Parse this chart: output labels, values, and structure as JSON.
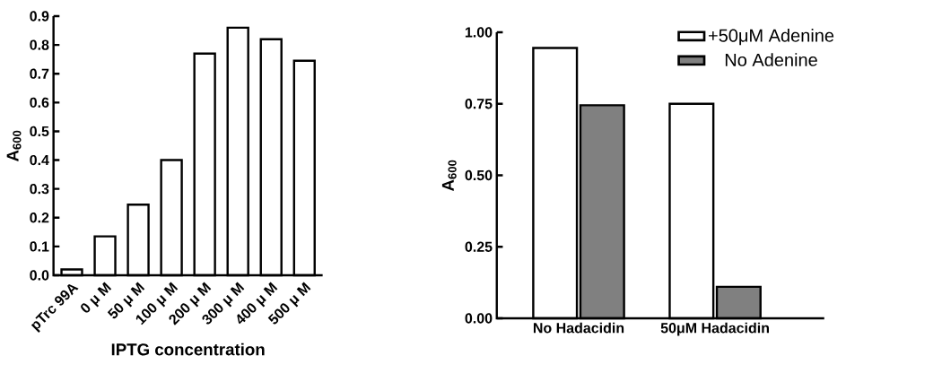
{
  "chart_data": [
    {
      "type": "bar",
      "xlabel": "IPTG concentration",
      "ylabel": "A$_{600}$",
      "categories": [
        "pTrc 99A",
        "0 μ M",
        "50 μ M",
        "100 μ M",
        "200 μ M",
        "300 μ M",
        "400 μ M",
        "500 μ M"
      ],
      "values": [
        0.02,
        0.135,
        0.245,
        0.4,
        0.77,
        0.86,
        0.82,
        0.745
      ],
      "color": "#ffffff",
      "ylim": [
        0,
        0.9
      ],
      "yticks": [
        {
          "value": 0,
          "label": "0.0"
        },
        {
          "value": 0.1,
          "label": "0.1"
        },
        {
          "value": 0.2,
          "label": "0.2"
        },
        {
          "value": 0.3,
          "label": "0.3"
        },
        {
          "value": 0.4,
          "label": "0.4"
        },
        {
          "value": 0.5,
          "label": "0.5"
        },
        {
          "value": 0.6,
          "label": "0.6"
        },
        {
          "value": 0.7,
          "label": "0.7"
        },
        {
          "value": 0.8,
          "label": "0.8"
        },
        {
          "value": 0.9,
          "label": "0.9"
        }
      ],
      "grid": false,
      "legend": false
    },
    {
      "type": "bar",
      "ylabel": "A$_{600}$",
      "categories": [
        "No Hadacidin",
        "50μM Hadacidin"
      ],
      "series": [
        {
          "name": "+50μM Adenine",
          "color": "#ffffff",
          "values": [
            0.945,
            0.75
          ]
        },
        {
          "name": "No Adenine",
          "color": "#808080",
          "values": [
            0.745,
            0.11
          ]
        }
      ],
      "ylim": [
        0,
        1
      ],
      "yticks": [
        {
          "value": 0,
          "label": "0.00"
        },
        {
          "value": 0.25,
          "label": "0.25"
        },
        {
          "value": 0.5,
          "label": "0.50"
        },
        {
          "value": 0.75,
          "label": "0.75"
        },
        {
          "value": 1,
          "label": "1.00"
        }
      ],
      "grid": false,
      "legend": "top right"
    }
  ]
}
